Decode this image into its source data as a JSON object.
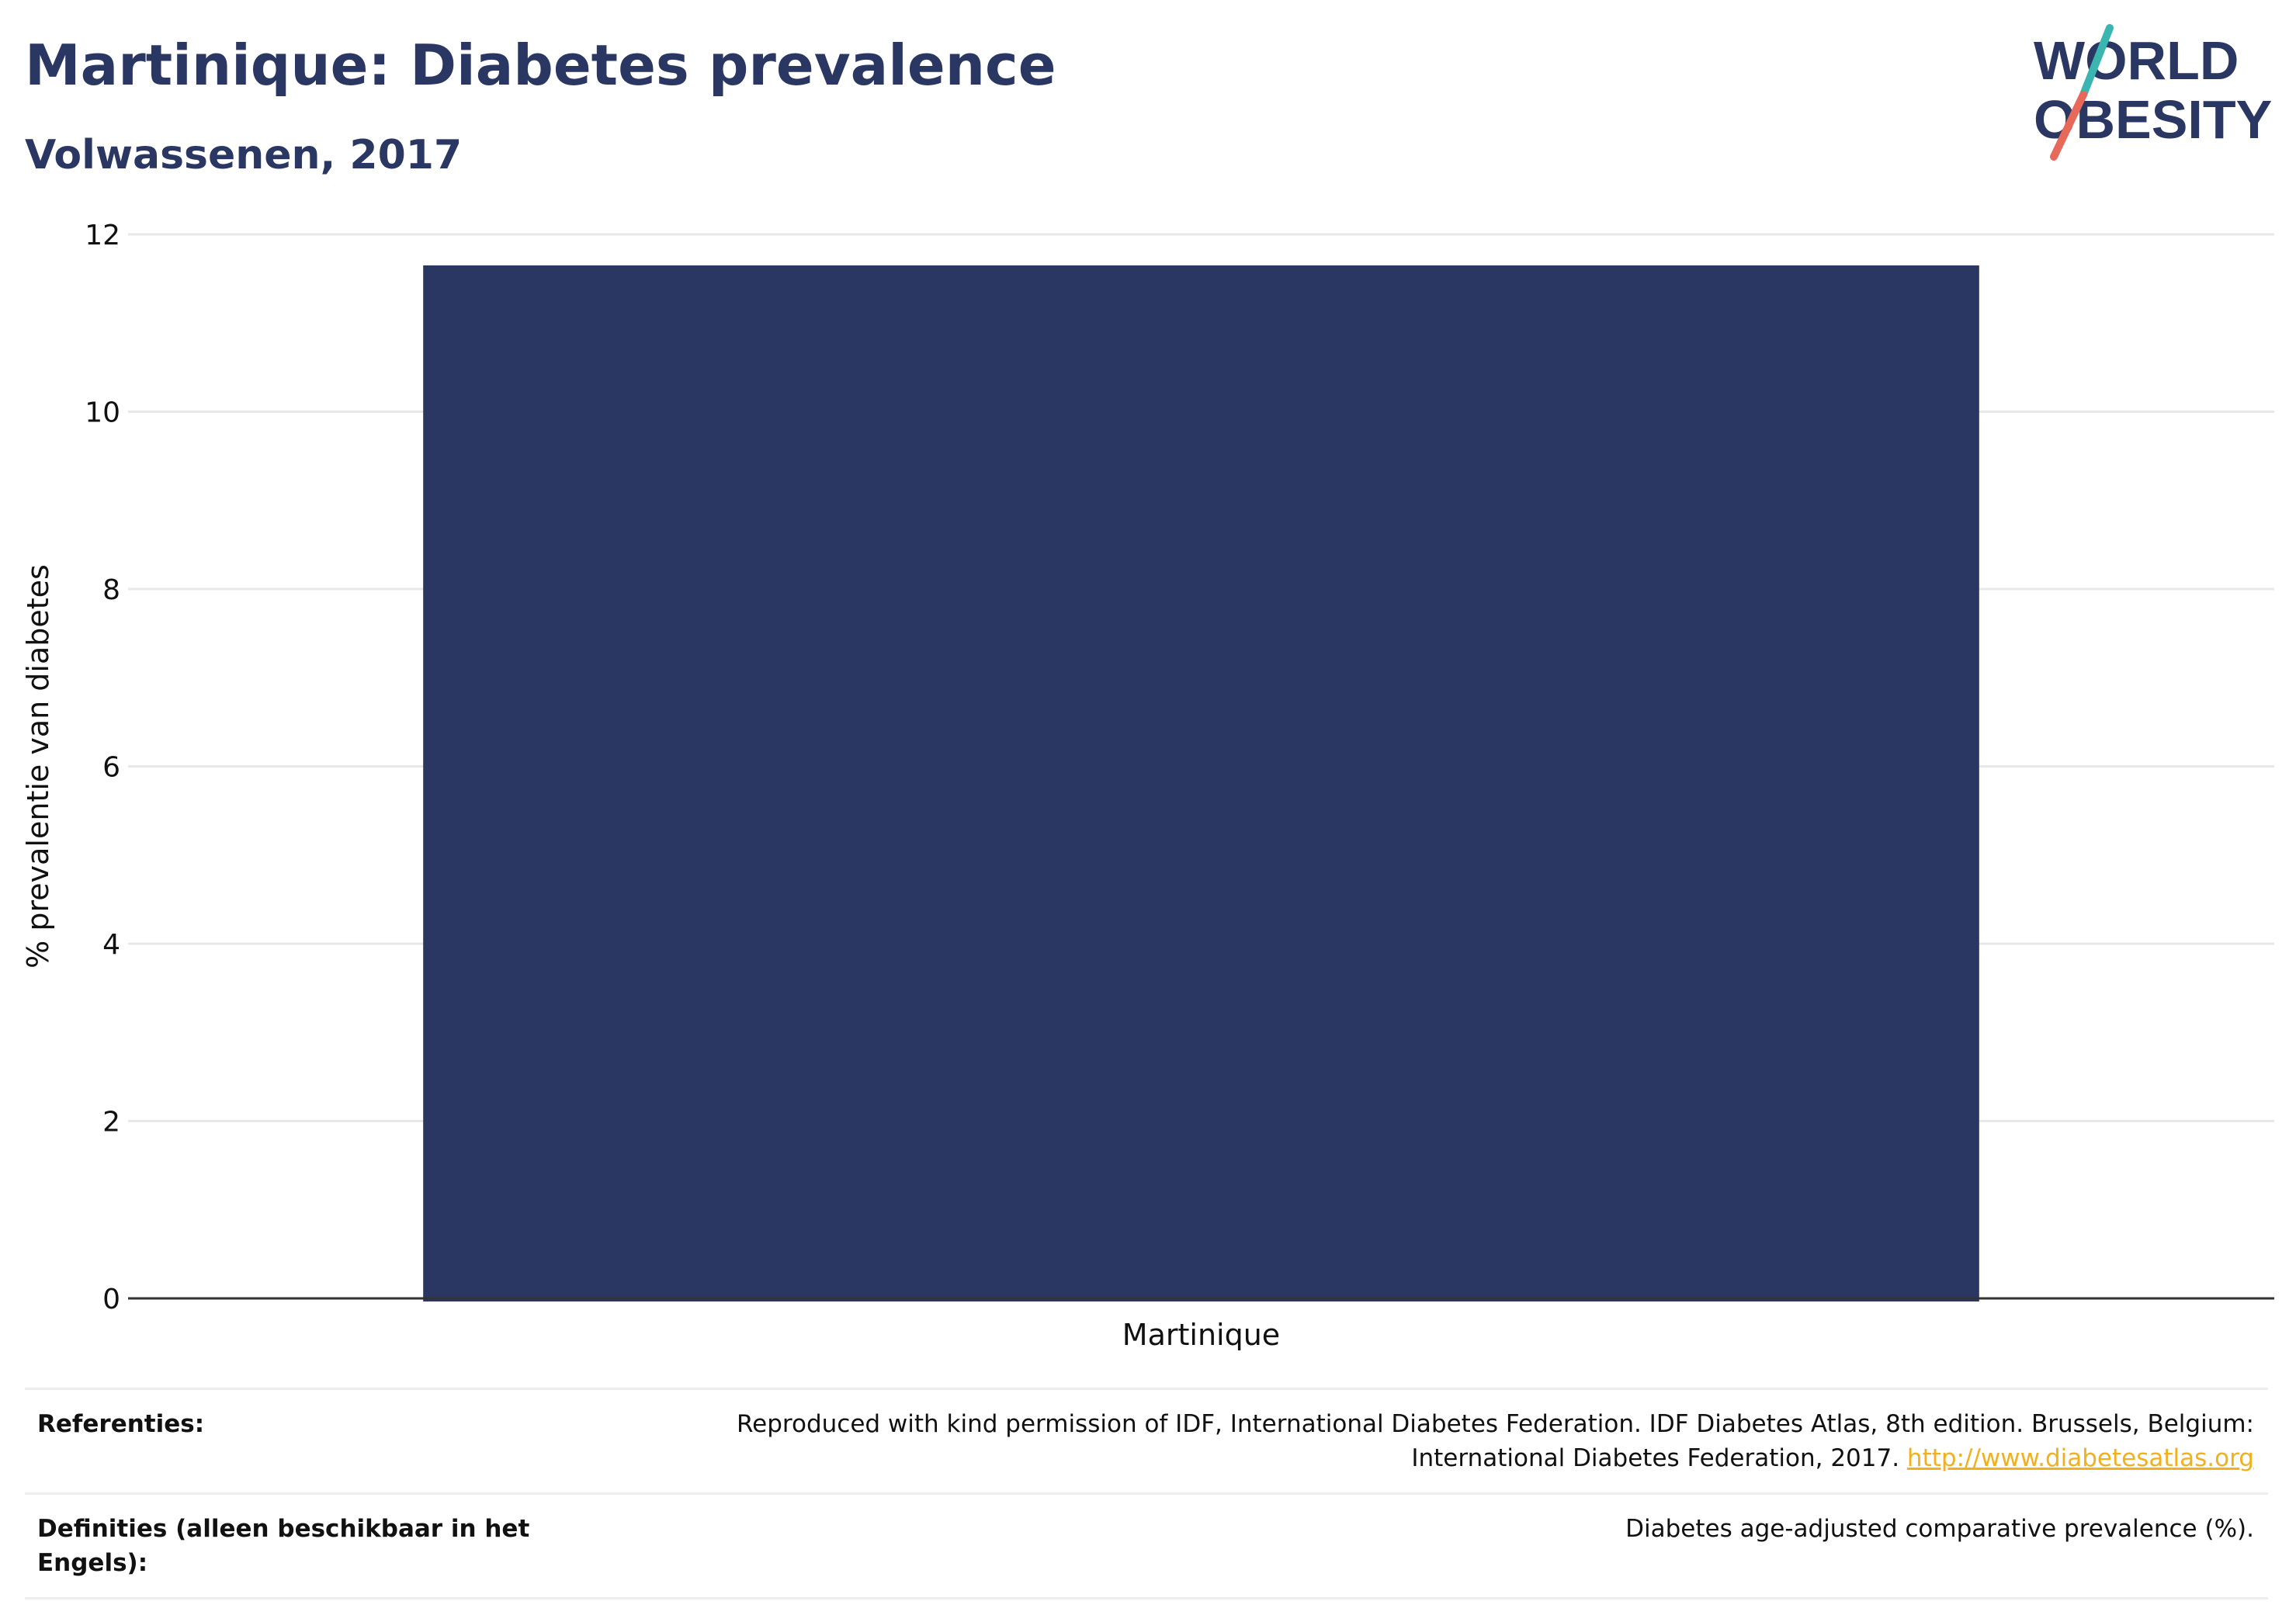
{
  "header": {
    "title": "Martinique: Diabetes prevalence",
    "subtitle": "Volwassenen, 2017"
  },
  "logo": {
    "line1": "WORLD",
    "line2": "OBESITY",
    "colors": {
      "text": "#2b3763",
      "slash_top": "#3ab5b0",
      "slash_bottom": "#e8685a"
    }
  },
  "chart_data": {
    "type": "bar",
    "categories": [
      "Martinique"
    ],
    "values": [
      11.65
    ],
    "title": "Martinique: Diabetes prevalence",
    "subtitle": "Volwassenen, 2017",
    "xlabel": "",
    "ylabel": "% prevalentie van diabetes",
    "ylim": [
      0,
      12
    ],
    "yticks": [
      0,
      2,
      4,
      6,
      8,
      10,
      12
    ],
    "grid": true,
    "bar_color": "#2b3763"
  },
  "references": {
    "label": "Referenties:",
    "text": "Reproduced with kind permission of IDF, International Diabetes Federation. IDF Diabetes Atlas, 8th edition. Brussels, Belgium: International Diabetes Federation, 2017. ",
    "link": "http://www.diabetesatlas.org"
  },
  "definitions": {
    "label": "Definities (alleen beschikbaar in het Engels):",
    "text": "Diabetes age-adjusted comparative prevalence (%)."
  }
}
